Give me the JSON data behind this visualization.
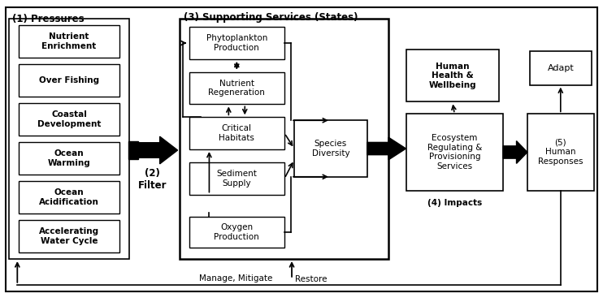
{
  "fig_width": 7.42,
  "fig_height": 3.72,
  "bg_color": "#ffffff",
  "pressures_label": "(1) Pressures",
  "filter_label": "(2)\nFilter",
  "supporting_label": "(3) Supporting Services (States)",
  "impacts_label": "(4) Impacts",
  "human_responses_label": "(5)\nHuman\nResponses",
  "adapt_label": "Adapt",
  "human_health_label": "Human\nHealth &\nWellbeing",
  "ecosystem_label": "Ecosystem\nRegulating &\nProvisioning\nServices",
  "restore_label": "Restore",
  "manage_label": "Manage, Mitigate",
  "pressure_items": [
    "Nutrient\nEnrichment",
    "Over Fishing",
    "Coastal\nDevelopment",
    "Ocean\nWarming",
    "Ocean\nAcidification",
    "Accelerating\nWater Cycle"
  ],
  "species_diversity_label": "Species\nDiversity",
  "supporting_nodes": [
    "Phytoplankton\nProduction",
    "Nutrient\nRegeneration",
    "Critical\nHabitats",
    "Sediment\nSupply",
    "Oxygen\nProduction"
  ]
}
